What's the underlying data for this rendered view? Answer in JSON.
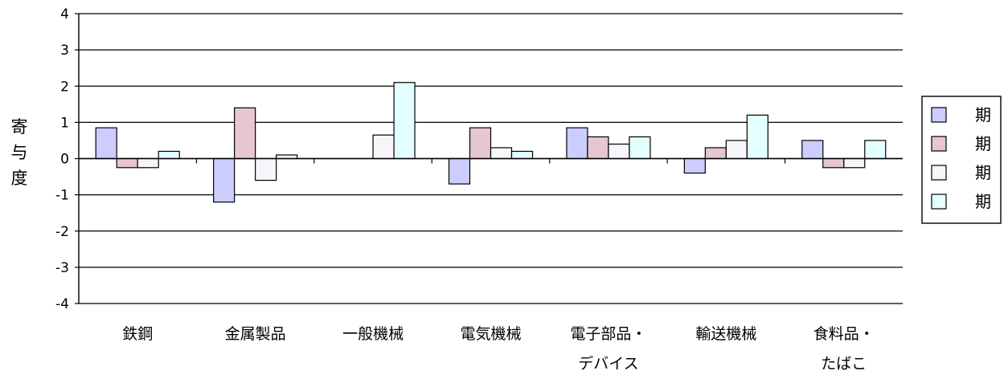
{
  "chart_data": {
    "type": "bar",
    "title": "",
    "xlabel": "",
    "ylabel": "寄与度",
    "ylim": [
      -4,
      4
    ],
    "yticks": [
      4,
      3,
      2,
      1,
      0,
      -1,
      -2,
      -3,
      -4
    ],
    "grid": true,
    "legend_position": "right",
    "categories": [
      [
        "鉄鋼"
      ],
      [
        "金属製品"
      ],
      [
        "一般機械"
      ],
      [
        "電気機械"
      ],
      [
        "電子部品・",
        "デバイス"
      ],
      [
        "輸送機械"
      ],
      [
        "食料品・",
        "たばこ"
      ]
    ],
    "series": [
      {
        "name": "期",
        "color": "#ccccff",
        "values": [
          0.85,
          -1.2,
          0,
          -0.7,
          0.85,
          -0.4,
          0.5
        ]
      },
      {
        "name": "期",
        "color": "#e6c6d0",
        "values": [
          -0.25,
          1.4,
          0,
          0.85,
          0.6,
          0.3,
          -0.25
        ]
      },
      {
        "name": "期",
        "color": "#f7f5fa",
        "values": [
          -0.25,
          -0.6,
          0.65,
          0.3,
          0.4,
          0.5,
          -0.25
        ]
      },
      {
        "name": "期",
        "color": "#e4ffff",
        "values": [
          0.2,
          0.1,
          2.1,
          0.2,
          0.6,
          1.2,
          0.5
        ]
      }
    ]
  }
}
